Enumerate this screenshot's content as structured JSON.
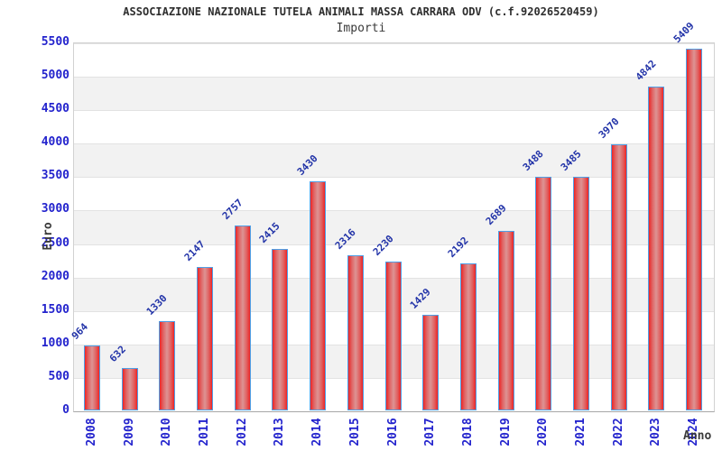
{
  "chart_data": {
    "type": "bar",
    "title": "ASSOCIAZIONE NAZIONALE TUTELA ANIMALI MASSA CARRARA ODV (c.f.92026520459)",
    "subtitle": "Importi",
    "xlabel": "Anno",
    "ylabel": "Euro",
    "categories": [
      "2008",
      "2009",
      "2010",
      "2011",
      "2012",
      "2013",
      "2014",
      "2015",
      "2016",
      "2017",
      "2018",
      "2019",
      "2020",
      "2021",
      "2022",
      "2023",
      "2024"
    ],
    "values": [
      964,
      632,
      1330,
      2147,
      2757,
      2415,
      3430,
      2316,
      2230,
      1429,
      2192,
      2689,
      3488,
      3485,
      3970,
      4842,
      5409
    ],
    "ylim": [
      0,
      5500
    ],
    "ytick_step": 500,
    "yticks": [
      0,
      500,
      1000,
      1500,
      2000,
      2500,
      3000,
      3500,
      4000,
      4500,
      5000,
      5500
    ],
    "grid": "horizontal-bands",
    "legend_position": "none"
  },
  "colors": {
    "bar_edge": "#ee2424",
    "bar_mid": "#e06060",
    "bar_center": "#dd9494",
    "bar_border": "#4f9fe6",
    "axis_tick_label": "#2323cd",
    "value_label": "#2233a8",
    "axis_title": "#3a3a3a",
    "title_text": "#2e2e2e",
    "subtitle_text": "#3a3a3a",
    "band_fill": "#f2f2f2",
    "grid_line": "#e2e2e2",
    "plot_background": "#ffffff"
  }
}
